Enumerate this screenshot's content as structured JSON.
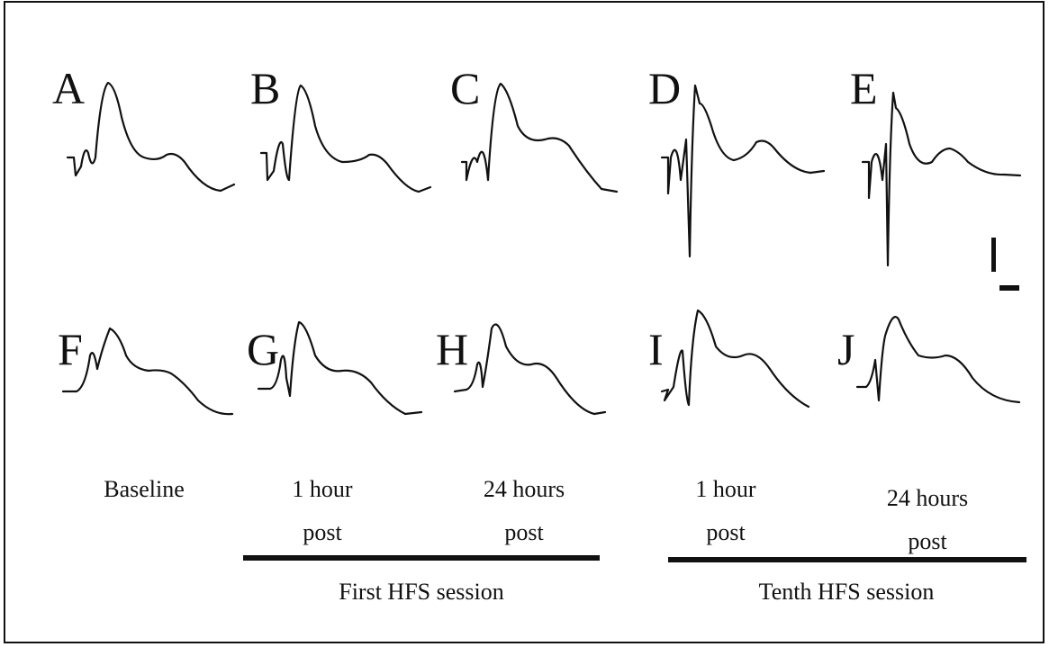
{
  "panels": [
    "A",
    "B",
    "C",
    "D",
    "E",
    "F",
    "G",
    "H",
    "I",
    "J"
  ],
  "columns": [
    {
      "lines": [
        "Baseline"
      ]
    },
    {
      "lines": [
        "1 hour",
        "post"
      ]
    },
    {
      "lines": [
        "24 hours",
        "post"
      ]
    },
    {
      "lines": [
        "1 hour",
        "post"
      ]
    },
    {
      "lines": [
        "24 hours",
        "post"
      ]
    }
  ],
  "sessions": [
    "First HFS session",
    "Tenth HFS session"
  ]
}
